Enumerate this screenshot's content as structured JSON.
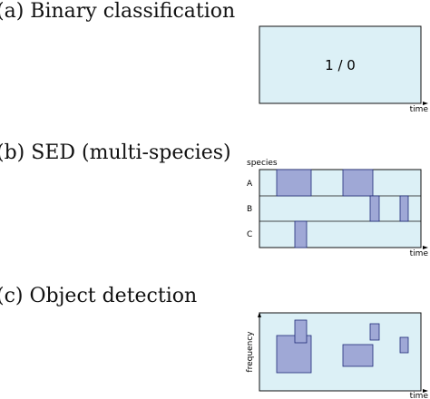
{
  "panels": {
    "a": {
      "heading": "(a) Binary classification",
      "label": "1 / 0",
      "x_axis": "time"
    },
    "b": {
      "heading": "(b) SED (multi-species)",
      "y_axis": "species",
      "x_axis": "time",
      "rows": [
        "A",
        "B",
        "C"
      ]
    },
    "c": {
      "heading": "(c) Object detection",
      "y_axis": "frequency",
      "x_axis": "time"
    }
  },
  "colors": {
    "panel_fill": "#dcf0f6",
    "box_fill": "#9fa8d6",
    "box_stroke": "#1e2a78",
    "frame": "#111111"
  }
}
